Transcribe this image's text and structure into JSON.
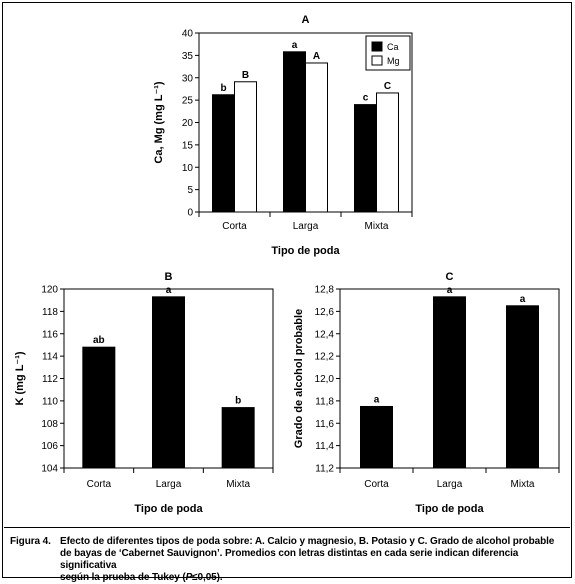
{
  "figure": {
    "caption_label": "Figura 4.",
    "caption_line1": "Efecto de diferentes tipos de poda sobre: A. Calcio y magnesio, B. Potasio y C. Grado de alcohol probable",
    "caption_line2": "de bayas de ‘Cabernet Sauvignon’. Promedios con letras distintas en cada serie indican diferencia significativa",
    "caption_line3_pre": "según la prueba de Tukey (",
    "caption_line3_p": "P",
    "caption_line3_post": "≤0,05)."
  },
  "chart_data": [
    {
      "type": "bar",
      "title": "A",
      "xlabel": "Tipo de poda",
      "ylabel": "Ca, Mg (mg L⁻¹)",
      "ylim": [
        0,
        40
      ],
      "yticks": [
        0,
        5,
        10,
        15,
        20,
        25,
        30,
        35,
        40
      ],
      "ytick_labels": [
        "0",
        "5",
        "10",
        "15",
        "20",
        "25",
        "30",
        "35",
        "40"
      ],
      "categories": [
        "Corta",
        "Larga",
        "Mixta"
      ],
      "legend_position": "top-right",
      "series": [
        {
          "name": "Ca",
          "color": "#000000",
          "values": [
            26.2,
            35.8,
            24.0
          ],
          "letters": [
            "b",
            "a",
            "c"
          ]
        },
        {
          "name": "Mg",
          "color": "#ffffff",
          "values": [
            29.1,
            33.3,
            26.6
          ],
          "letters": [
            "B",
            "A",
            "C"
          ]
        }
      ]
    },
    {
      "type": "bar",
      "title": "B",
      "xlabel": "Tipo de poda",
      "ylabel": "K (mg L⁻¹)",
      "ylim": [
        104,
        120
      ],
      "yticks": [
        104,
        106,
        108,
        110,
        112,
        114,
        116,
        118,
        120
      ],
      "ytick_labels": [
        "104",
        "106",
        "108",
        "110",
        "112",
        "114",
        "116",
        "118",
        "120"
      ],
      "categories": [
        "Corta",
        "Larga",
        "Mixta"
      ],
      "series": [
        {
          "name": "",
          "color": "#000000",
          "values": [
            114.8,
            119.3,
            109.4
          ],
          "letters": [
            "ab",
            "a",
            "b"
          ]
        }
      ]
    },
    {
      "type": "bar",
      "title": "C",
      "xlabel": "Tipo de poda",
      "ylabel": "Grado de alcohol probable",
      "ylim": [
        11.2,
        12.8
      ],
      "yticks": [
        11.2,
        11.4,
        11.6,
        11.8,
        12.0,
        12.2,
        12.4,
        12.6,
        12.8
      ],
      "ytick_labels": [
        "11,2",
        "11,4",
        "11,6",
        "11,8",
        "12,0",
        "12,2",
        "12,4",
        "12,6",
        "12,8"
      ],
      "categories": [
        "Corta",
        "Larga",
        "Mixta"
      ],
      "series": [
        {
          "name": "",
          "color": "#000000",
          "values": [
            11.75,
            12.73,
            12.65
          ],
          "letters": [
            "a",
            "a",
            "a"
          ]
        }
      ]
    }
  ]
}
